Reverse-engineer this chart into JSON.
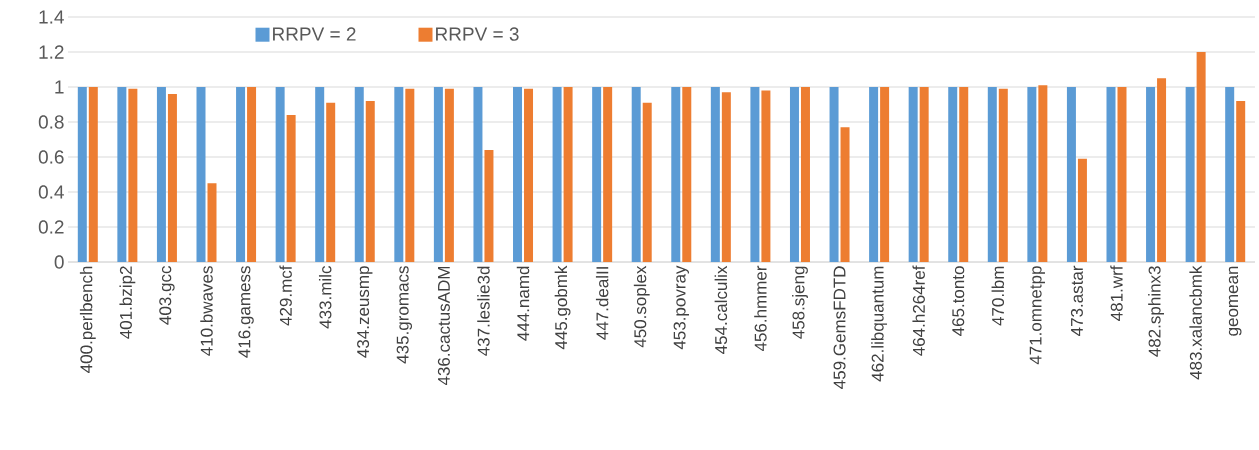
{
  "chart_data": {
    "type": "bar",
    "categories": [
      "400.perlbench",
      "401.bzip2",
      "403.gcc",
      "410.bwaves",
      "416.gamess",
      "429.mcf",
      "433.milc",
      "434.zeusmp",
      "435.gromacs",
      "436.cactusADM",
      "437.leslie3d",
      "444.namd",
      "445.gobmk",
      "447.dealII",
      "450.soplex",
      "453.povray",
      "454.calculix",
      "456.hmmer",
      "458.sjeng",
      "459.GemsFDTD",
      "462.libquantum",
      "464.h264ref",
      "465.tonto",
      "470.lbm",
      "471.omnetpp",
      "473.astar",
      "481.wrf",
      "482.sphinx3",
      "483.xalancbmk",
      "geomean"
    ],
    "series": [
      {
        "name": "RRPV = 2",
        "color": "#5b9bd5",
        "values": [
          1,
          1,
          1,
          1,
          1,
          1,
          1,
          1,
          1,
          1,
          1,
          1,
          1,
          1,
          1,
          1,
          1,
          1,
          1,
          1,
          1,
          1,
          1,
          1,
          1,
          1,
          1,
          1,
          1,
          1
        ]
      },
      {
        "name": "RRPV = 3",
        "color": "#ed7d31",
        "values": [
          1,
          0.99,
          0.96,
          0.45,
          1,
          0.84,
          0.91,
          0.92,
          0.99,
          0.99,
          0.64,
          0.99,
          1,
          1,
          0.91,
          1,
          0.97,
          0.98,
          1,
          0.77,
          1,
          1,
          1,
          0.99,
          1.01,
          0.59,
          1,
          1.05,
          1.2,
          0.92
        ]
      }
    ],
    "ylim": [
      0,
      1.4
    ],
    "yticks": [
      0,
      0.2,
      0.4,
      0.6,
      0.8,
      1,
      1.2,
      1.4
    ],
    "grid": "y",
    "legend": "top"
  }
}
